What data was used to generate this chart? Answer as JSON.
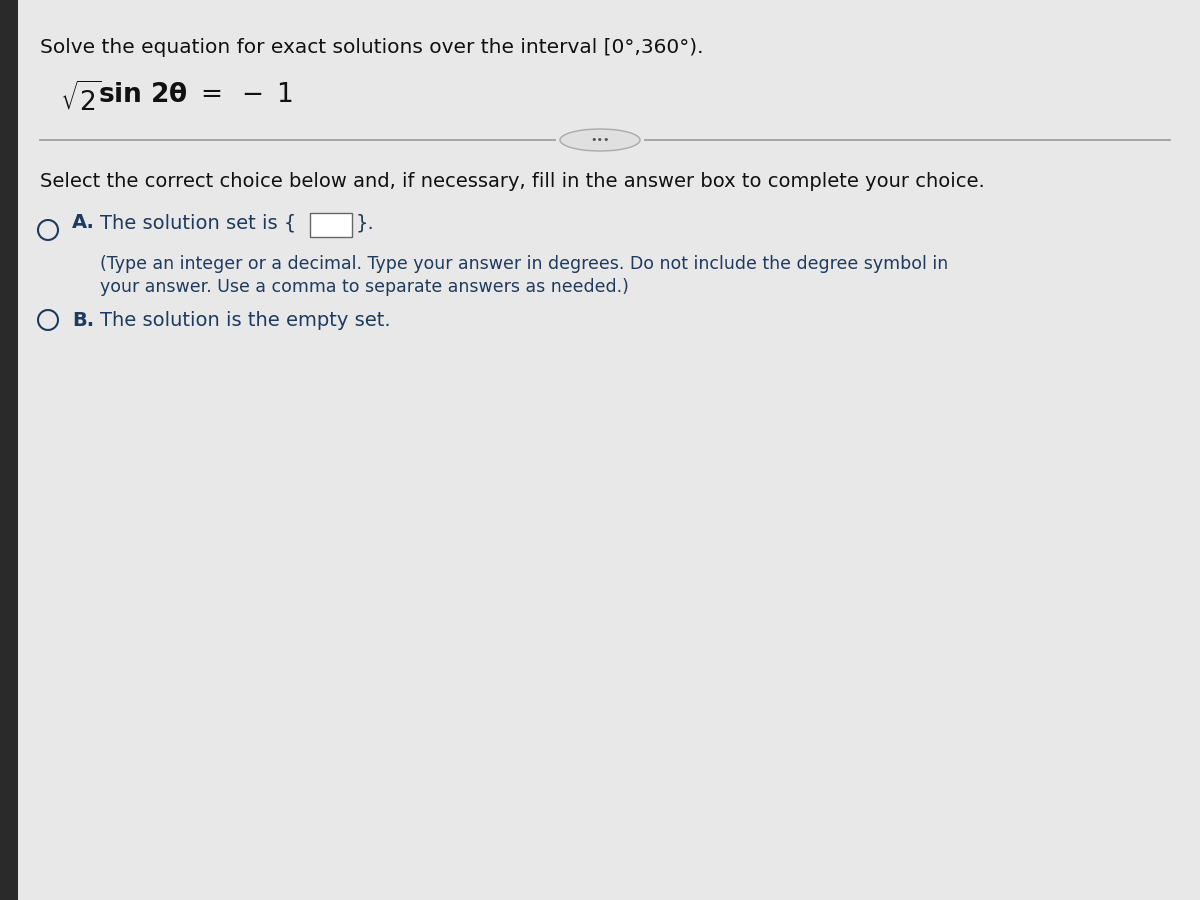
{
  "background_color": "#c8c8c8",
  "panel_color": "#e8e8e8",
  "left_bar_color": "#1a1a1a",
  "title_line": "Solve the equation for exact solutions over the interval [0°,360°).",
  "divider_dots": "•••",
  "instruction": "Select the correct choice below and, if necessary, fill in the answer box to complete your choice.",
  "option_A_label": "A.",
  "option_A_text_before": "The solution set is {",
  "option_A_closing": "}.",
  "option_A_subtext_line1": "(Type an integer or a decimal. Type your answer in degrees. Do not include the degree symbol in",
  "option_A_subtext_line2": "your answer. Use a comma to separate answers as needed.)",
  "option_B_label": "B.",
  "option_B_text": "The solution is the empty set.",
  "text_color": "#111111",
  "blue_text_color": "#1e3a5f",
  "circle_color": "#1e3a5f",
  "title_fontsize": 14.5,
  "equation_fontsize": 19,
  "instruction_fontsize": 14,
  "option_fontsize": 14,
  "subtext_fontsize": 12.5,
  "line_color": "#999999",
  "ellipse_face": "#e0e0e0",
  "ellipse_edge": "#aaaaaa"
}
